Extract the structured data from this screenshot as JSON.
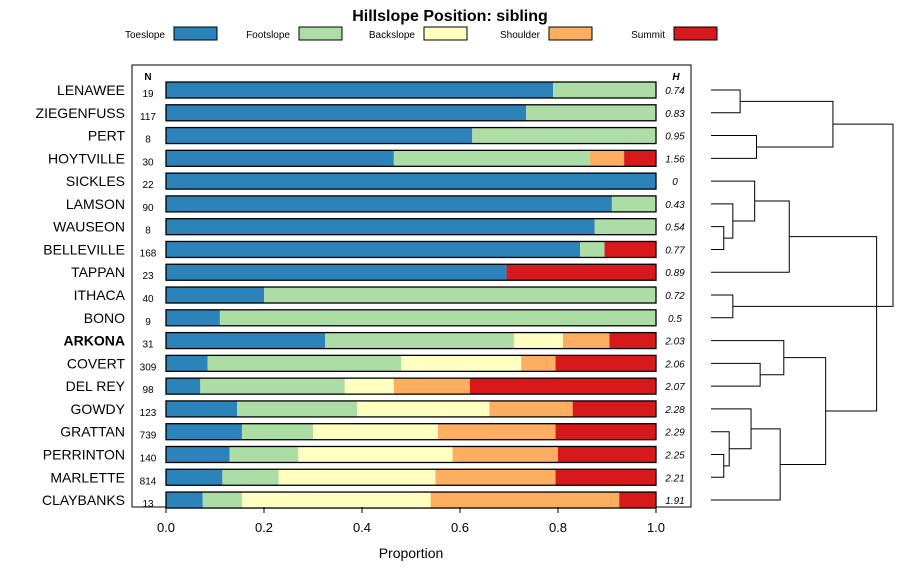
{
  "chart_data": {
    "type": "bar",
    "orientation": "horizontal",
    "stacked": true,
    "title": "Hillslope Position: sibling",
    "xlabel": "Proportion",
    "ylabel": "",
    "xlim": [
      0,
      1
    ],
    "x_ticks": [
      "0.0",
      "0.2",
      "0.4",
      "0.6",
      "0.8",
      "1.0"
    ],
    "n_header": "N",
    "h_header": "H",
    "legend_position": "top",
    "highlight": "ARKONA",
    "categories": [
      "LENAWEE",
      "ZIEGENFUSS",
      "PERT",
      "HOYTVILLE",
      "SICKLES",
      "LAMSON",
      "WAUSEON",
      "BELLEVILLE",
      "TAPPAN",
      "ITHACA",
      "BONO",
      "ARKONA",
      "COVERT",
      "DEL REY",
      "GOWDY",
      "GRATTAN",
      "PERRINTON",
      "MARLETTE",
      "CLAYBANKS"
    ],
    "n": [
      "19",
      "117",
      "8",
      "30",
      "22",
      "90",
      "8",
      "168",
      "23",
      "40",
      "9",
      "31",
      "309",
      "98",
      "123",
      "739",
      "140",
      "814",
      "13"
    ],
    "h": [
      "0.74",
      "0.83",
      "0.95",
      "1.56",
      "0",
      "0.43",
      "0.54",
      "0.77",
      "0.89",
      "0.72",
      "0.5",
      "2.03",
      "2.06",
      "2.07",
      "2.28",
      "2.29",
      "2.25",
      "2.21",
      "1.91"
    ],
    "series": [
      {
        "name": "Toeslope",
        "color": "#2b83ba",
        "values": [
          0.79,
          0.735,
          0.625,
          0.465,
          1.0,
          0.91,
          0.875,
          0.845,
          0.695,
          0.2,
          0.11,
          0.325,
          0.085,
          0.07,
          0.145,
          0.155,
          0.13,
          0.115,
          0.075
        ]
      },
      {
        "name": "Footslope",
        "color": "#abdda4",
        "values": [
          0.21,
          0.265,
          0.375,
          0.4,
          0.0,
          0.09,
          0.125,
          0.05,
          0.0,
          0.8,
          0.89,
          0.385,
          0.395,
          0.295,
          0.245,
          0.145,
          0.14,
          0.115,
          0.08
        ]
      },
      {
        "name": "Backslope",
        "color": "#ffffbf",
        "values": [
          0,
          0,
          0,
          0,
          0,
          0,
          0,
          0,
          0,
          0,
          0,
          0.1,
          0.245,
          0.1,
          0.27,
          0.255,
          0.315,
          0.32,
          0.385
        ]
      },
      {
        "name": "Shoulder",
        "color": "#fdae61",
        "values": [
          0,
          0,
          0,
          0.07,
          0,
          0,
          0,
          0,
          0,
          0,
          0,
          0.095,
          0.07,
          0.155,
          0.17,
          0.24,
          0.215,
          0.245,
          0.385
        ]
      },
      {
        "name": "Summit",
        "color": "#d7191c",
        "values": [
          0,
          0,
          0,
          0.065,
          0,
          0,
          0,
          0.105,
          0.305,
          0,
          0,
          0.095,
          0.205,
          0.38,
          0.17,
          0.205,
          0.2,
          0.205,
          0.075
        ]
      }
    ],
    "dendrogram": {
      "merges": [
        [
          0,
          1,
          0.16
        ],
        [
          2,
          3,
          0.25
        ],
        [
          6,
          7,
          0.07
        ],
        [
          5,
          21,
          0.12
        ],
        [
          4,
          22,
          0.24
        ],
        [
          23,
          8,
          0.43
        ],
        [
          9,
          10,
          0.12
        ],
        [
          12,
          13,
          0.27
        ],
        [
          11,
          26,
          0.4
        ],
        [
          16,
          17,
          0.07
        ],
        [
          15,
          28,
          0.1
        ],
        [
          14,
          29,
          0.22
        ],
        [
          30,
          18,
          0.38
        ],
        [
          27,
          31,
          0.63
        ],
        [
          19,
          20,
          0.67
        ],
        [
          24,
          32,
          0.91
        ],
        [
          25,
          33,
          1.0
        ]
      ]
    }
  }
}
